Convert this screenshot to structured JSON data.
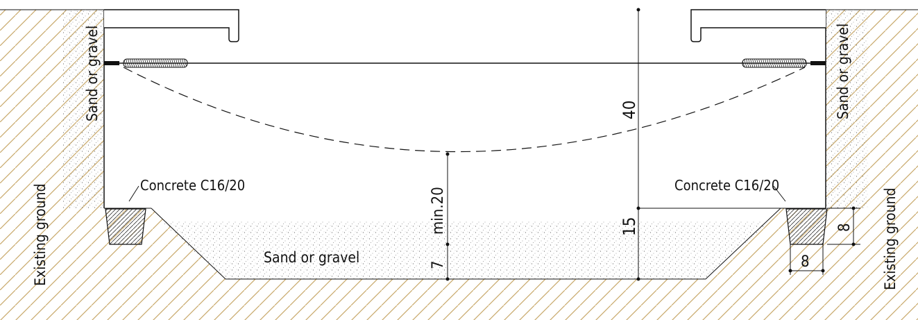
{
  "labels": {
    "sand_gravel_left": "Sand or gravel",
    "sand_gravel_right": "Sand or gravel",
    "sand_gravel_bottom": "Sand or gravel",
    "concrete_left": "Concrete C16/20",
    "concrete_right": "Concrete C16/20",
    "existing_ground_left": "Existing ground",
    "existing_ground_right": "Existing ground"
  },
  "dimensions": {
    "depth_total": "40",
    "min_clearance": "min.20",
    "base_height": "15",
    "sand_layer": "7",
    "footing_height": "8",
    "footing_width": "8"
  },
  "colors": {
    "line": "#111111",
    "hatch": "#b89a5a",
    "sand": "#555555"
  }
}
